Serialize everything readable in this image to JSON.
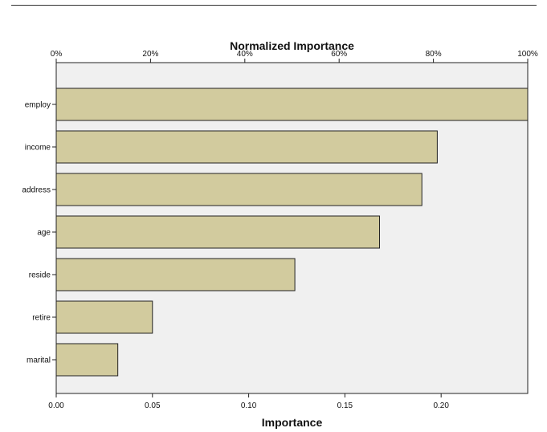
{
  "chart_data": {
    "type": "bar",
    "orientation": "horizontal",
    "title": "Normalized Importance",
    "xlabel": "Importance",
    "ylabel": "",
    "categories": [
      "employ",
      "income",
      "address",
      "age",
      "reside",
      "retire",
      "marital"
    ],
    "values": [
      0.245,
      0.198,
      0.19,
      0.168,
      0.124,
      0.05,
      0.032
    ],
    "xlim": [
      0,
      0.245
    ],
    "bottom_ticks": [
      "0.00",
      "0.05",
      "0.10",
      "0.15",
      "0.20"
    ],
    "bottom_tick_values": [
      0,
      0.05,
      0.1,
      0.15,
      0.2
    ],
    "top_axis": {
      "label": "Normalized Importance",
      "ticks": [
        "0%",
        "20%",
        "40%",
        "60%",
        "80%",
        "100%"
      ],
      "tick_values": [
        0,
        20,
        40,
        60,
        80,
        100
      ]
    },
    "grid": false,
    "colors": {
      "bar_fill": "#D2CB9E",
      "bar_stroke": "#222222",
      "plot_background": "#F0F0F0",
      "axis": "#222222"
    }
  }
}
